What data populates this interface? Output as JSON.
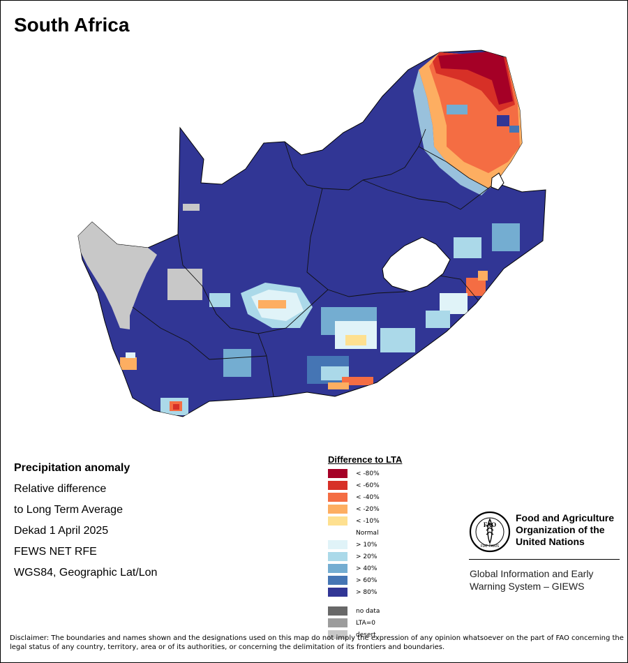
{
  "title": "South Africa",
  "info": {
    "heading": "Precipitation anomaly",
    "lines": [
      "Relative difference",
      "to Long Term Average",
      "Dekad 1 April 2025",
      "FEWS NET RFE",
      "WGS84, Geographic Lat/Lon"
    ]
  },
  "legend": {
    "title": "Difference to LTA",
    "items": [
      {
        "label": "< -80%",
        "color": "#a50026"
      },
      {
        "label": "< -60%",
        "color": "#d73027"
      },
      {
        "label": "< -40%",
        "color": "#f46d43"
      },
      {
        "label": "< -20%",
        "color": "#fdae61"
      },
      {
        "label": "< -10%",
        "color": "#fee090"
      },
      {
        "label": "Normal",
        "color": "#ffffff"
      },
      {
        "label": "> 10%",
        "color": "#e0f3f8"
      },
      {
        "label": "> 20%",
        "color": "#abd9e9"
      },
      {
        "label": "> 40%",
        "color": "#74add1"
      },
      {
        "label": "> 60%",
        "color": "#4575b4"
      },
      {
        "label": "> 80%",
        "color": "#313695"
      }
    ],
    "extra": [
      {
        "label": "no data",
        "color": "#686868"
      },
      {
        "label": "LTA=0",
        "color": "#9c9c9c"
      },
      {
        "label": "desert",
        "color": "#c8c8c8"
      }
    ]
  },
  "org": {
    "name_lines": [
      "Food and Agriculture",
      "Organization of the",
      "United Nations"
    ],
    "logo_text": "FAO",
    "logo_motto": "FIAT PANIS",
    "system_lines": [
      "Global Information and Early",
      "Warning System – GIEWS"
    ]
  },
  "disclaimer": "Disclaimer: The boundaries and names shown and the designations used on this map do not imply the expression of any opinion whatsoever on the part of FAO concerning the legal status of any country, territory, area or of its authorities, or concerning the delimitation of its frontiers and boundaries."
}
